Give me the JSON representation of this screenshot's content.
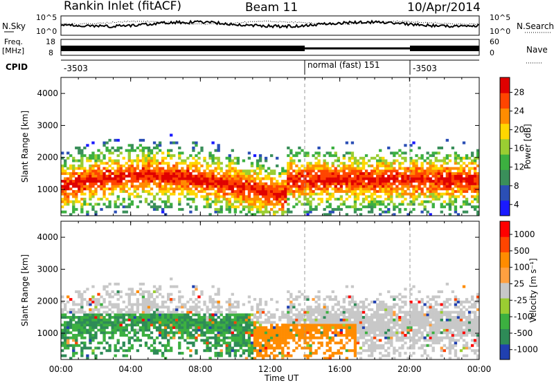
{
  "header": {
    "station": "Rankin Inlet (fitACF)",
    "beam": "Beam 11",
    "date": "10/Apr/2014"
  },
  "panels": {
    "nsky_label": "N.Sky",
    "nsky_ticks": [
      "10^5",
      "10^0"
    ],
    "nsearch_label": "N.Search",
    "nsearch_ticks": [
      "10^5",
      "10^0"
    ],
    "freq_label": "Freq.",
    "freq_unit": "[MHz]",
    "freq_ticks": [
      "18",
      "8"
    ],
    "nave_label": "Nave",
    "nave_ticks": [
      "60",
      "0"
    ],
    "cpid_label": "CPID",
    "cpid_segments": [
      "-3503",
      "normal (fast) 151",
      "-3503"
    ]
  },
  "colors": {
    "power": [
      "#1a1aff",
      "#2b4fb5",
      "#3a8f5a",
      "#3cb040",
      "#9acd32",
      "#ffd700",
      "#ff8c00",
      "#ff4500",
      "#e00000"
    ],
    "velocity": [
      "#ff0000",
      "#ff4500",
      "#ff8c00",
      "#ffa040",
      "#c8c8c8",
      "#9acd32",
      "#3cb040",
      "#2e8b57",
      "#2040b0"
    ]
  },
  "chart_data": [
    {
      "type": "heatmap",
      "name": "power",
      "ylabel": "Slant Range [km]",
      "y_ticks": [
        "1000",
        "2000",
        "3000",
        "4000"
      ],
      "ylim": [
        180,
        4500
      ],
      "colorbar_label": "Power [dB]",
      "colorbar_ticks": [
        "28",
        "24",
        "20",
        "16",
        "12",
        "8",
        "4"
      ],
      "colorbar_range": [
        0,
        32
      ]
    },
    {
      "type": "heatmap",
      "name": "velocity",
      "ylabel": "Slant Range [km]",
      "y_ticks": [
        "1000",
        "2000",
        "3000",
        "4000"
      ],
      "ylim": [
        180,
        4500
      ],
      "colorbar_label": "Velocity [m s⁻¹]",
      "colorbar_ticks": [
        "1000",
        "500",
        "100",
        "25",
        "-25",
        "-100",
        "-500",
        "-1000"
      ]
    }
  ],
  "xaxis": {
    "ticks": [
      "00:00",
      "04:00",
      "08:00",
      "12:00",
      "16:00",
      "20:00",
      "00:00"
    ],
    "label": "Time UT"
  }
}
